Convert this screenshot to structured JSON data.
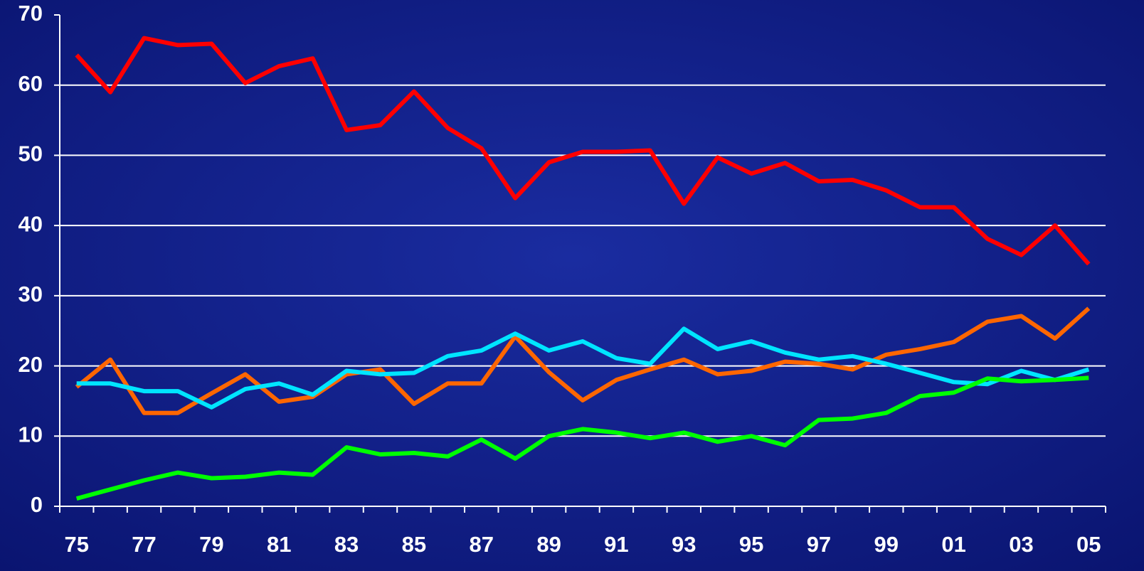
{
  "chart_data": {
    "type": "line",
    "categories": [
      "75",
      null,
      "77",
      null,
      "79",
      null,
      "81",
      null,
      "83",
      null,
      "85",
      null,
      "87",
      null,
      "89",
      null,
      "91",
      null,
      "93",
      null,
      "95",
      null,
      "97",
      null,
      "99",
      null,
      "01",
      null,
      "03",
      null,
      "05"
    ],
    "series": [
      {
        "color": "#ff0000",
        "values": [
          64.3,
          59,
          66.7,
          65.7,
          65.9,
          60.3,
          62.7,
          63.8,
          53.6,
          54.3,
          59.1,
          53.9,
          51,
          43.9,
          49,
          50.5,
          50.5,
          50.7,
          43.1,
          49.7,
          47.4,
          48.9,
          46.3,
          46.5,
          45,
          42.6,
          42.6,
          38.1,
          35.8,
          40,
          34.5
        ]
      },
      {
        "color": "#ff6600",
        "values": [
          17,
          20.9,
          13.3,
          13.3,
          16.1,
          18.8,
          14.9,
          15.6,
          18.8,
          19.5,
          14.6,
          17.5,
          17.5,
          24.2,
          19.1,
          15.1,
          18,
          19.5,
          20.9,
          18.8,
          19.3,
          20.6,
          20.3,
          19.5,
          21.6,
          22.4,
          23.4,
          26.3,
          27.1,
          23.9,
          28.2
        ]
      },
      {
        "color": "#00e5ff",
        "values": [
          17.5,
          17.5,
          16.4,
          16.4,
          14.1,
          16.7,
          17.5,
          15.9,
          19.3,
          18.8,
          19,
          21.4,
          22.2,
          24.6,
          22.2,
          23.5,
          21.1,
          20.3,
          25.3,
          22.4,
          23.5,
          21.9,
          20.9,
          21.4,
          20.3,
          19,
          17.7,
          17.4,
          19.3,
          18,
          19.5
        ]
      },
      {
        "color": "#00ff00",
        "values": [
          1.1,
          2.4,
          3.7,
          4.8,
          4,
          4.2,
          4.8,
          4.5,
          8.4,
          7.4,
          7.6,
          7.1,
          9.5,
          6.8,
          10,
          11,
          10.5,
          9.7,
          10.5,
          9.2,
          10,
          8.7,
          12.3,
          12.5,
          13.3,
          15.7,
          16.2,
          18.2,
          17.8,
          18,
          18.3
        ]
      }
    ],
    "ylim": [
      0,
      70
    ],
    "yticks": [
      0,
      10,
      20,
      30,
      40,
      50,
      60,
      70
    ],
    "grid": true
  }
}
